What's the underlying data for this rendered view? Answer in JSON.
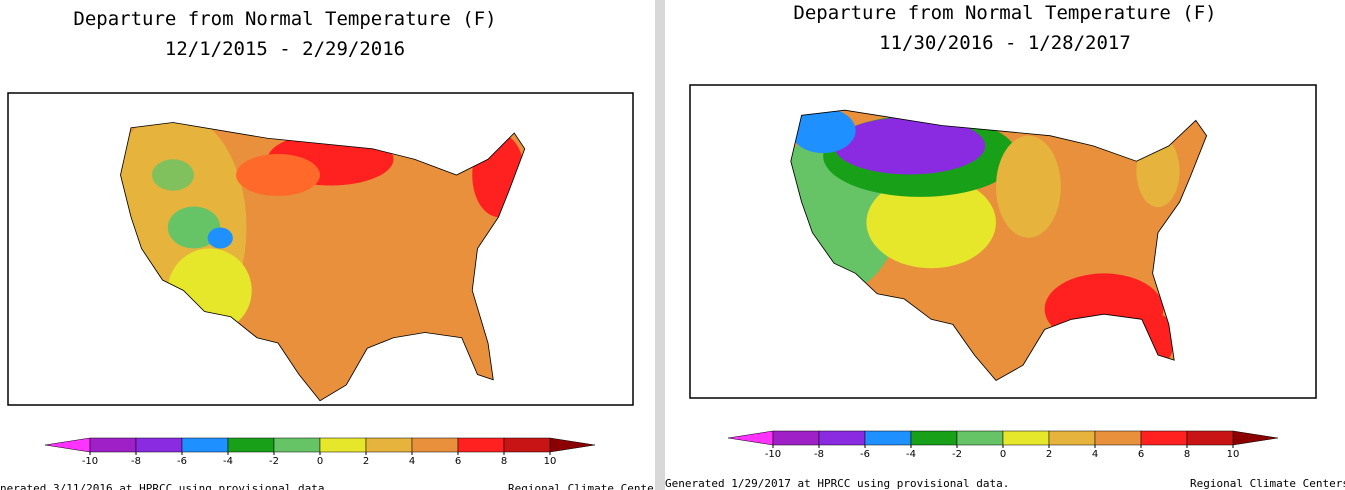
{
  "panels": [
    {
      "title": "Departure from Normal Temperature (F)",
      "subtitle": "12/1/2015 - 2/29/2016",
      "colorbar": {
        "ticks": [
          -10,
          -8,
          -6,
          -4,
          -2,
          0,
          2,
          4,
          6,
          8,
          10
        ],
        "colors": [
          "#a020c8",
          "#8a2be2",
          "#1e90ff",
          "#18a018",
          "#66c466",
          "#e6e62a",
          "#e6b43c",
          "#e8903c",
          "#ff2020",
          "#c81414"
        ],
        "under": "#ff33ff",
        "over": "#8b0000"
      },
      "footer_left": "nerated 3/11/2016 at HPRCC using provisional data.",
      "footer_right": "Regional Climate Centers"
    },
    {
      "title": "Departure from Normal Temperature (F)",
      "subtitle": "11/30/2016 - 1/28/2017",
      "colorbar": {
        "ticks": [
          -10,
          -8,
          -6,
          -4,
          -2,
          0,
          2,
          4,
          6,
          8,
          10
        ],
        "colors": [
          "#a020c8",
          "#8a2be2",
          "#1e90ff",
          "#18a018",
          "#66c466",
          "#e6e62a",
          "#e6b43c",
          "#e8903c",
          "#ff2020",
          "#c81414"
        ],
        "under": "#ff33ff",
        "over": "#8b0000"
      },
      "footer_left": "Generated 1/29/2017 at HPRCC using provisional data.",
      "footer_right": "Regional Climate Centers"
    }
  ]
}
